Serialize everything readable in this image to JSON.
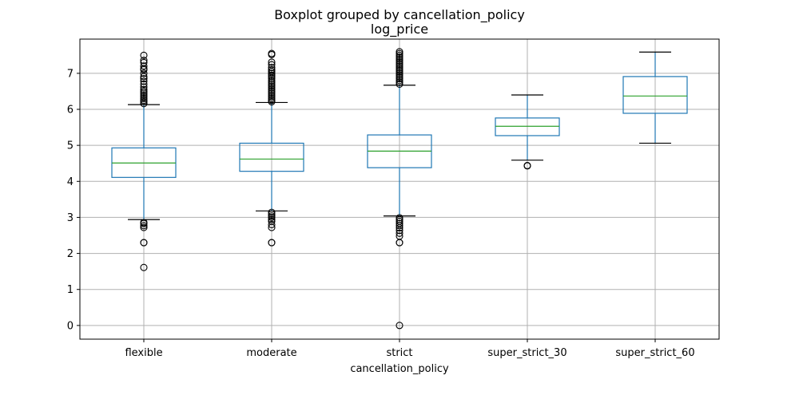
{
  "chart_data": {
    "type": "box",
    "suptitle": "Boxplot grouped by cancellation_policy",
    "title": "log_price",
    "xlabel": "cancellation_policy",
    "ylabel": "",
    "ylim": [
      -0.38,
      7.95
    ],
    "yticks": [
      0,
      1,
      2,
      3,
      4,
      5,
      6,
      7
    ],
    "grid": true,
    "groups": [
      {
        "category": "flexible",
        "q1": 4.11,
        "median": 4.51,
        "q3": 4.93,
        "whisker_low": 2.94,
        "whisker_high": 6.13,
        "outliers": [
          1.61,
          2.3,
          2.3,
          2.72,
          2.77,
          2.83,
          2.86,
          6.16,
          6.21,
          6.25,
          6.3,
          6.35,
          6.4,
          6.45,
          6.5,
          6.55,
          6.62,
          6.7,
          6.78,
          6.85,
          6.91,
          7.0,
          7.1,
          7.13,
          7.2,
          7.3,
          7.36,
          7.5
        ]
      },
      {
        "category": "moderate",
        "q1": 4.28,
        "median": 4.62,
        "q3": 5.06,
        "whisker_low": 3.18,
        "whisker_high": 6.19,
        "outliers": [
          2.3,
          2.3,
          2.72,
          2.8,
          2.89,
          2.94,
          3.0,
          3.04,
          3.09,
          3.14,
          6.21,
          6.25,
          6.3,
          6.35,
          6.4,
          6.45,
          6.5,
          6.55,
          6.6,
          6.65,
          6.7,
          6.75,
          6.8,
          6.86,
          6.91,
          6.95,
          7.0,
          7.05,
          7.1,
          7.16,
          7.24,
          7.31,
          7.52,
          7.55
        ]
      },
      {
        "category": "strict",
        "q1": 4.38,
        "median": 4.84,
        "q3": 5.29,
        "whisker_low": 3.04,
        "whisker_high": 6.67,
        "outliers": [
          0.0,
          2.3,
          2.3,
          2.48,
          2.56,
          2.64,
          2.71,
          2.77,
          2.83,
          2.89,
          2.94,
          2.99,
          6.7,
          6.75,
          6.8,
          6.85,
          6.9,
          6.95,
          7.0,
          7.05,
          7.1,
          7.15,
          7.2,
          7.25,
          7.3,
          7.35,
          7.4,
          7.45,
          7.5,
          7.55,
          7.6
        ]
      },
      {
        "category": "super_strict_30",
        "q1": 5.27,
        "median": 5.53,
        "q3": 5.76,
        "whisker_low": 4.59,
        "whisker_high": 6.4,
        "outliers": [
          4.43,
          4.44
        ]
      },
      {
        "category": "super_strict_60",
        "q1": 5.89,
        "median": 6.37,
        "q3": 6.91,
        "whisker_low": 5.06,
        "whisker_high": 7.59,
        "outliers": []
      }
    ]
  }
}
